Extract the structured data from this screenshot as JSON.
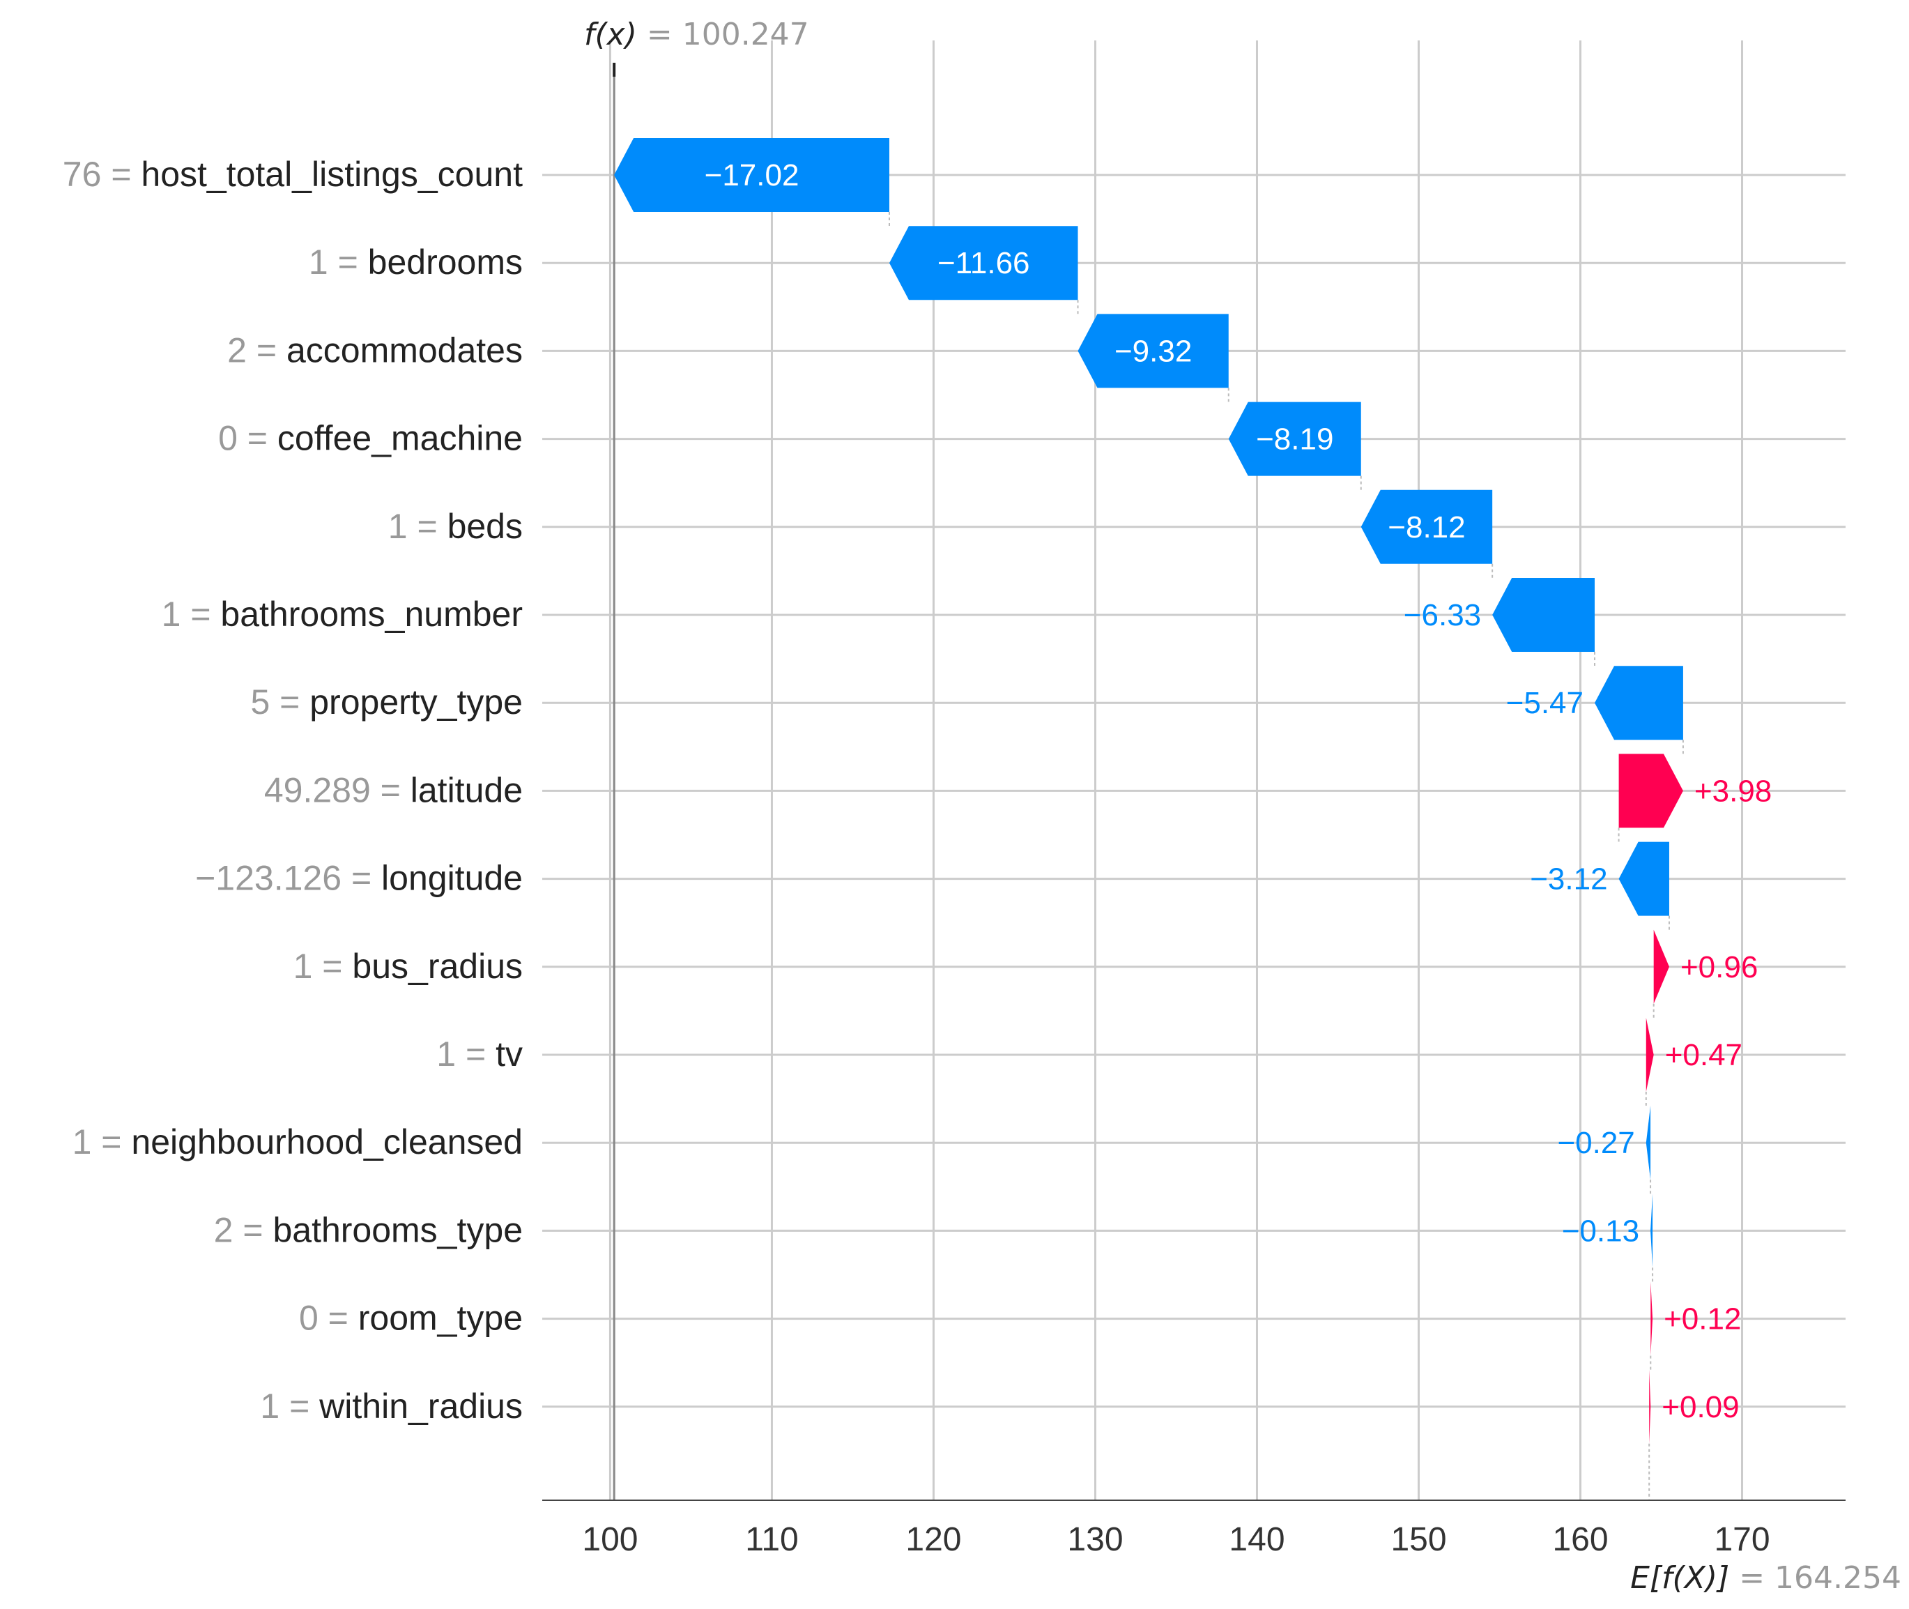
{
  "chart_data": {
    "type": "waterfall",
    "fx": {
      "label": "f(x)",
      "value": "100.247",
      "number": 100.247
    },
    "expected": {
      "label": "E[f(X)]",
      "value": "164.254",
      "number": 164.254
    },
    "xlim": [
      95.8,
      176.4
    ],
    "ticks": [
      100,
      110,
      120,
      130,
      140,
      150,
      160,
      170
    ],
    "tick_labels": [
      "100",
      "110",
      "120",
      "130",
      "140",
      "150",
      "160",
      "170"
    ],
    "grid": true,
    "colors": {
      "positive": "#ff0051",
      "negative": "#008bfb",
      "grid": "#cccccc",
      "muted": "#999999"
    },
    "features": [
      {
        "value": "76",
        "name": "host_total_listings_count",
        "shap": -17.02,
        "label": "−17.02"
      },
      {
        "value": "1",
        "name": "bedrooms",
        "shap": -11.66,
        "label": "−11.66"
      },
      {
        "value": "2",
        "name": "accommodates",
        "shap": -9.32,
        "label": "−9.32"
      },
      {
        "value": "0",
        "name": "coffee_machine",
        "shap": -8.19,
        "label": "−8.19"
      },
      {
        "value": "1",
        "name": "beds",
        "shap": -8.12,
        "label": "−8.12"
      },
      {
        "value": "1",
        "name": "bathrooms_number",
        "shap": -6.33,
        "label": "−6.33"
      },
      {
        "value": "5",
        "name": "property_type",
        "shap": -5.47,
        "label": "−5.47"
      },
      {
        "value": "49.289",
        "name": "latitude",
        "shap": 3.98,
        "label": "+3.98"
      },
      {
        "value": "−123.126",
        "name": "longitude",
        "shap": -3.12,
        "label": "−3.12"
      },
      {
        "value": "1",
        "name": "bus_radius",
        "shap": 0.96,
        "label": "+0.96"
      },
      {
        "value": "1",
        "name": "tv",
        "shap": 0.47,
        "label": "+0.47"
      },
      {
        "value": "1",
        "name": "neighbourhood_cleansed",
        "shap": -0.27,
        "label": "−0.27"
      },
      {
        "value": "2",
        "name": "bathrooms_type",
        "shap": -0.13,
        "label": "−0.13"
      },
      {
        "value": "0",
        "name": "room_type",
        "shap": 0.12,
        "label": "+0.12"
      },
      {
        "value": "1",
        "name": "within_radius",
        "shap": 0.09,
        "label": "+0.09"
      }
    ]
  }
}
